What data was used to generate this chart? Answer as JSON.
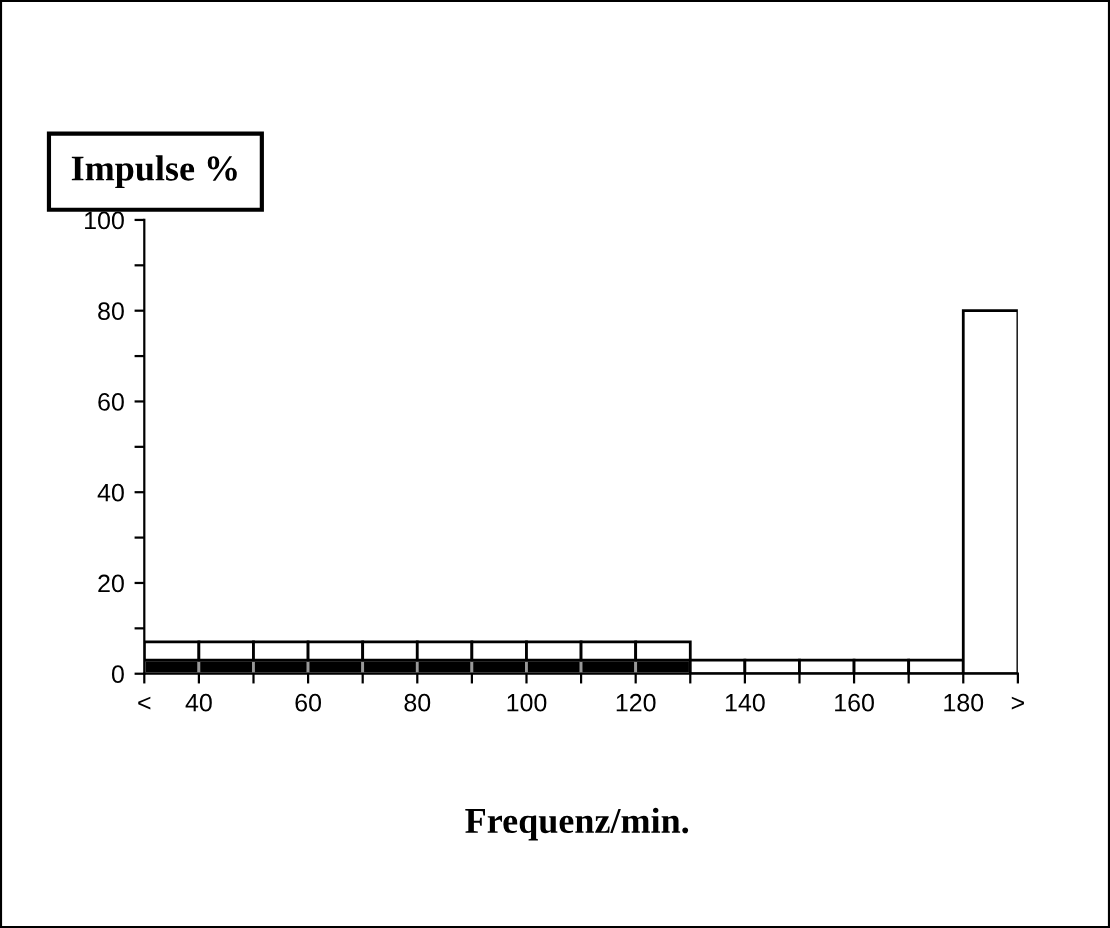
{
  "chart_data": {
    "type": "bar",
    "ylabel": "Impulse %",
    "xlabel": "Frequenz/min.",
    "x": [
      35,
      45,
      55,
      65,
      75,
      85,
      95,
      105,
      115,
      125,
      135,
      145,
      155,
      165,
      175,
      185
    ],
    "series": [
      {
        "color": "#000000",
        "values": [
          3,
          3,
          3,
          3,
          3,
          3,
          3,
          3,
          3,
          3,
          null,
          null,
          null,
          null,
          null,
          null
        ]
      },
      {
        "color": "#ffffff",
        "values": [
          4,
          4,
          4,
          4,
          4,
          4,
          4,
          4,
          4,
          4,
          3,
          3,
          3,
          3,
          3,
          80
        ]
      }
    ],
    "stacked": true,
    "xlim": [
      30,
      190
    ],
    "ylim": [
      0,
      100
    ],
    "xticks": [
      {
        "value": 30,
        "label": "<"
      },
      40,
      {
        "value": 50,
        "label": null
      },
      60,
      {
        "value": 70,
        "label": null
      },
      80,
      {
        "value": 90,
        "label": null
      },
      100,
      {
        "value": 110,
        "label": null
      },
      120,
      {
        "value": 130,
        "label": null
      },
      140,
      {
        "value": 150,
        "label": null
      },
      160,
      {
        "value": 170,
        "label": null
      },
      180,
      {
        "value": 190,
        "label": ">"
      }
    ],
    "yticks": [
      0,
      {
        "value": 10,
        "label": null
      },
      20,
      {
        "value": 30,
        "label": null
      },
      40,
      {
        "value": 50,
        "label": null
      },
      60,
      {
        "value": 70,
        "label": null
      },
      80,
      {
        "value": 90,
        "label": null
      },
      100
    ],
    "grid": false,
    "legend": false
  }
}
